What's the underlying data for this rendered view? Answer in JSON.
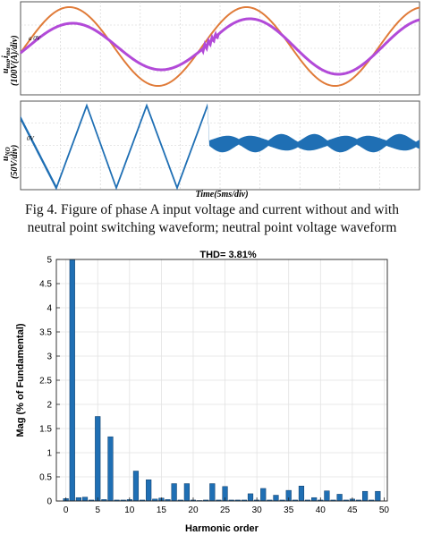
{
  "waveform_figure": {
    "panel1": {
      "ylabel_line1": "u",
      "ylabel_sub1": "ma",
      "ylabel_mid": ",i",
      "ylabel_sub2": "ma",
      "ylabel_line2": "(100V(A)/div)",
      "marker": "a 0V"
    },
    "panel2": {
      "ylabel_line1": "u",
      "ylabel_sub": "NO",
      "ylabel_line2": "(50V/div)",
      "marker": "0V"
    },
    "xlabel": "Time(5ms/div)",
    "colors": {
      "voltage": "#e07b39",
      "current": "#b24ad8",
      "neutral": "#1f6fb4"
    }
  },
  "caption": {
    "line1": "Fig 4. Figure of phase A input voltage and current without and with",
    "line2": "neutral point switching waveform; neutral point voltage waveform"
  },
  "chart_data": {
    "type": "bar",
    "title": "THD= 3.81%",
    "xlabel": "Harmonic order",
    "ylabel": "Mag (% of Fundamental)",
    "xlim": [
      -1.5,
      50.5
    ],
    "ylim": [
      0,
      5
    ],
    "xticks": [
      "0",
      "5",
      "10",
      "15",
      "20",
      "25",
      "30",
      "35",
      "40",
      "45",
      "50"
    ],
    "yticks": [
      "0",
      "0.5",
      "1",
      "1.5",
      "2",
      "2.5",
      "3",
      "3.5",
      "4",
      "4.5",
      "5"
    ],
    "grid": true,
    "bar_color": "#1f6fb4",
    "x": [
      0,
      1,
      2,
      3,
      4,
      5,
      6,
      7,
      8,
      9,
      10,
      11,
      12,
      13,
      14,
      15,
      16,
      17,
      18,
      19,
      20,
      21,
      22,
      23,
      24,
      25,
      26,
      27,
      28,
      29,
      30,
      31,
      32,
      33,
      34,
      35,
      36,
      37,
      38,
      39,
      40,
      41,
      42,
      43,
      44,
      45,
      46,
      47,
      48,
      49,
      50
    ],
    "values": [
      0.05,
      5.0,
      0.07,
      0.08,
      0.02,
      1.75,
      0.03,
      1.33,
      0.02,
      0.02,
      0.03,
      0.62,
      0.02,
      0.44,
      0.04,
      0.06,
      0.03,
      0.36,
      0.02,
      0.36,
      0.02,
      0.01,
      0.02,
      0.36,
      0.02,
      0.3,
      0.02,
      0.02,
      0.02,
      0.15,
      0.02,
      0.26,
      0.02,
      0.12,
      0.02,
      0.22,
      0.02,
      0.31,
      0.02,
      0.07,
      0.02,
      0.21,
      0.02,
      0.14,
      0.02,
      0.04,
      0.02,
      0.2,
      0.02,
      0.2,
      0.0
    ]
  }
}
